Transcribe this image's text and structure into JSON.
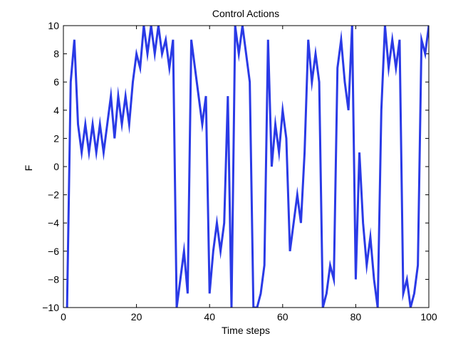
{
  "chart_data": {
    "type": "line",
    "title": "Control Actions",
    "xlabel": "Time steps",
    "ylabel": "F",
    "xlim": [
      0,
      100
    ],
    "ylim": [
      -10,
      10
    ],
    "xticks": [
      0,
      20,
      40,
      60,
      80,
      100
    ],
    "yticks": [
      -10,
      -8,
      -6,
      -4,
      -2,
      0,
      2,
      4,
      6,
      8,
      10
    ],
    "grid": false,
    "legend": "none",
    "series": [
      {
        "color": "#2a3ae6",
        "x": [
          1,
          2,
          3,
          4,
          5,
          6,
          7,
          8,
          9,
          10,
          11,
          12,
          13,
          14,
          15,
          16,
          17,
          18,
          19,
          20,
          21,
          22,
          23,
          24,
          25,
          26,
          27,
          28,
          29,
          30,
          31,
          32,
          33,
          34,
          35,
          36,
          37,
          38,
          39,
          40,
          41,
          42,
          43,
          44,
          45,
          46,
          47,
          48,
          49,
          50,
          51,
          52,
          53,
          54,
          55,
          56,
          57,
          58,
          59,
          60,
          61,
          62,
          63,
          64,
          65,
          66,
          67,
          68,
          69,
          70,
          71,
          72,
          73,
          74,
          75,
          76,
          77,
          78,
          79,
          80,
          81,
          82,
          83,
          84,
          85,
          86,
          87,
          88,
          89,
          90,
          91,
          92,
          93,
          94,
          95,
          96,
          97,
          98,
          99,
          100
        ],
        "y": [
          -10,
          6,
          9,
          3,
          1,
          3,
          1,
          3,
          1,
          3,
          1,
          3,
          5,
          2,
          5,
          3,
          5,
          3,
          6,
          8,
          7,
          10,
          8,
          10,
          8,
          10,
          8,
          9,
          7,
          9,
          -10,
          -8,
          -6,
          -9,
          9,
          7,
          5,
          3,
          5,
          -9,
          -6,
          -4,
          -6,
          -4,
          5,
          -10,
          10,
          8,
          10,
          8,
          6,
          -10,
          -10,
          -9,
          -7,
          9,
          0,
          3,
          1,
          4,
          2,
          -6,
          -4,
          -2,
          -4,
          1,
          9,
          6,
          8,
          6,
          -10,
          -9,
          -7,
          -8,
          7,
          9,
          6,
          4,
          10,
          -8,
          1,
          -4,
          -7,
          -5,
          -8,
          -10,
          4,
          10,
          7,
          9,
          7,
          9,
          -9,
          -8,
          -10,
          -9,
          -7,
          9,
          8,
          10
        ]
      }
    ]
  }
}
